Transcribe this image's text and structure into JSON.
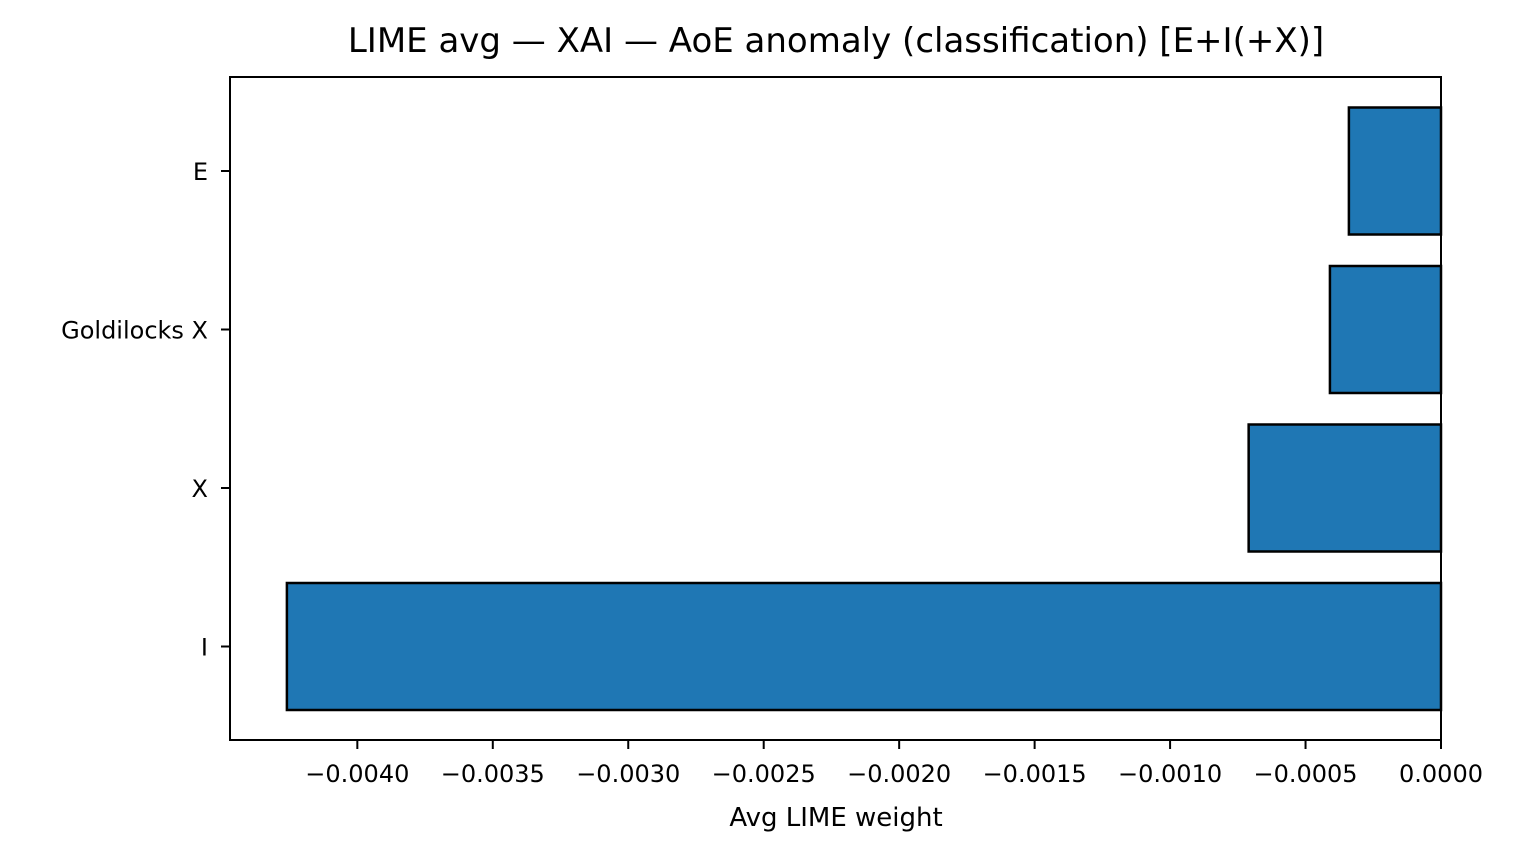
{
  "chart_data": {
    "type": "bar",
    "orientation": "horizontal",
    "title": "LIME avg — XAI — AoE anomaly (classification) [E+I(+X)]",
    "xlabel": "Avg LIME weight",
    "ylabel": "",
    "categories": [
      "E",
      "Goldilocks X",
      "X",
      "I"
    ],
    "values": [
      -0.00034,
      -0.00041,
      -0.00071,
      -0.00426
    ],
    "xlim": [
      -0.00447,
      0.0
    ],
    "xticks": [
      -0.004,
      -0.0035,
      -0.003,
      -0.0025,
      -0.002,
      -0.0015,
      -0.001,
      -0.0005,
      0.0
    ],
    "xtick_labels": [
      "−0.0040",
      "−0.0035",
      "−0.0030",
      "−0.0025",
      "−0.0020",
      "−0.0015",
      "−0.0010",
      "−0.0005",
      "0.0000"
    ],
    "grid": false,
    "legend": "none",
    "bar_color": "#1f77b4",
    "edge_color": "#000000"
  }
}
